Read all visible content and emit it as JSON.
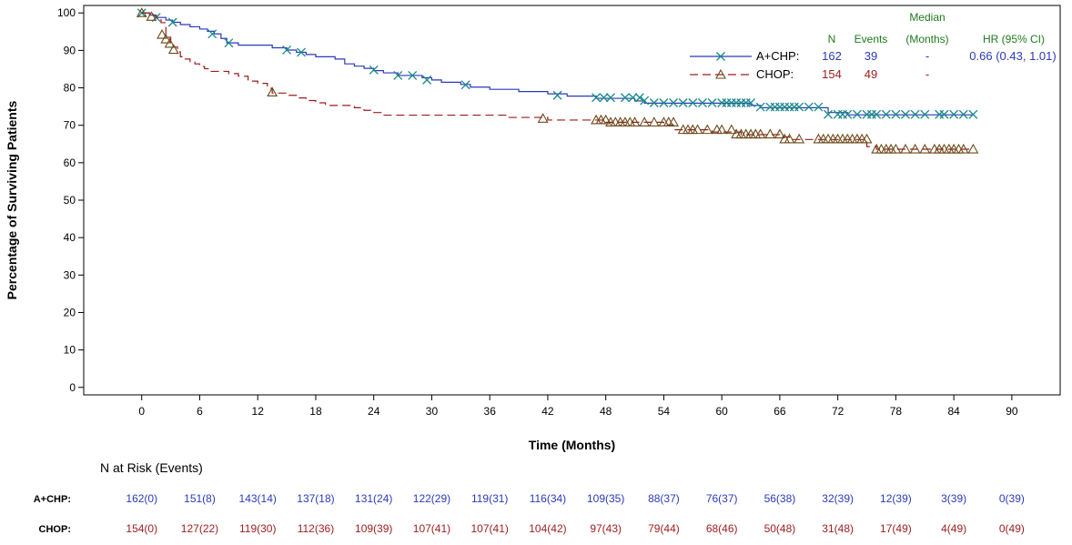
{
  "chart_data": {
    "type": "line",
    "subtype": "kaplan-meier",
    "title": "",
    "xlabel": "Time (Months)",
    "ylabel": "Percentage of Surviving Patients",
    "xlim": [
      -6,
      95
    ],
    "ylim": [
      -2,
      102
    ],
    "xticks": [
      0,
      6,
      12,
      18,
      24,
      30,
      36,
      42,
      48,
      54,
      60,
      66,
      72,
      78,
      84,
      90
    ],
    "yticks": [
      0,
      10,
      20,
      30,
      40,
      50,
      60,
      70,
      80,
      90,
      100
    ],
    "grid": false,
    "legend": {
      "placement": "top-right",
      "header": {
        "median": "Median",
        "n": "N",
        "events": "Events",
        "months": "(Months)",
        "hr": "HR (95% CI)"
      },
      "rows": [
        {
          "arm": "A+CHP:",
          "n": "162",
          "events": "39",
          "median": "-",
          "hr": "0.66 (0.43, 1.01)"
        },
        {
          "arm": "CHOP:",
          "n": "154",
          "events": "49",
          "median": "-",
          "hr": ""
        }
      ]
    },
    "series": [
      {
        "name": "A+CHP",
        "color": "#2b3ab8",
        "marker_color": "#1a8a8a",
        "marker": "x",
        "line_style": "solid",
        "steps": [
          [
            0,
            100
          ],
          [
            0.8,
            99.4
          ],
          [
            1.5,
            98.8
          ],
          [
            2.5,
            98.1
          ],
          [
            3.2,
            97.5
          ],
          [
            4,
            96.9
          ],
          [
            5,
            96.3
          ],
          [
            6,
            95.7
          ],
          [
            6.8,
            95.1
          ],
          [
            7.5,
            94.4
          ],
          [
            8.2,
            93.2
          ],
          [
            8.8,
            92.0
          ],
          [
            10,
            91.4
          ],
          [
            11,
            91.4
          ],
          [
            12.5,
            91.4
          ],
          [
            13.5,
            90.7
          ],
          [
            15,
            90.1
          ],
          [
            16,
            89.5
          ],
          [
            17,
            88.9
          ],
          [
            18,
            88.3
          ],
          [
            20,
            87.7
          ],
          [
            21,
            86.4
          ],
          [
            22,
            85.8
          ],
          [
            23,
            85.2
          ],
          [
            24,
            84.6
          ],
          [
            25,
            84.0
          ],
          [
            26.5,
            83.3
          ],
          [
            28,
            83.3
          ],
          [
            29,
            82.7
          ],
          [
            30,
            82.1
          ],
          [
            31,
            81.5
          ],
          [
            33,
            80.9
          ],
          [
            34,
            80.2
          ],
          [
            36,
            79.6
          ],
          [
            39,
            79.0
          ],
          [
            42,
            78.4
          ],
          [
            44,
            77.8
          ],
          [
            46,
            77.8
          ],
          [
            47,
            77.2
          ],
          [
            50,
            77.2
          ],
          [
            51,
            76.5
          ],
          [
            52,
            75.9
          ],
          [
            54,
            75.9
          ],
          [
            55,
            75.9
          ],
          [
            56,
            75.9
          ],
          [
            60,
            75.9
          ],
          [
            63,
            75.3
          ],
          [
            64,
            74.7
          ],
          [
            67,
            74.7
          ],
          [
            70,
            74.7
          ],
          [
            71,
            73.4
          ],
          [
            73,
            72.8
          ],
          [
            86,
            72.8
          ]
        ],
        "censor": [
          [
            0,
            100
          ],
          [
            1.5,
            98.8
          ],
          [
            3.2,
            97.5
          ],
          [
            7.3,
            94.4
          ],
          [
            9,
            92
          ],
          [
            15,
            90.1
          ],
          [
            16.5,
            89.5
          ],
          [
            24,
            84.8
          ],
          [
            26.5,
            83.3
          ],
          [
            28,
            83.3
          ],
          [
            29.5,
            82.1
          ],
          [
            33.5,
            80.8
          ],
          [
            43,
            78
          ],
          [
            47,
            77.4
          ],
          [
            47.8,
            77.4
          ],
          [
            48.5,
            77.4
          ],
          [
            50,
            77.4
          ],
          [
            50.8,
            77.4
          ],
          [
            51.5,
            77.4
          ],
          [
            52,
            76.6
          ],
          [
            53,
            76
          ],
          [
            54,
            76
          ],
          [
            55,
            76
          ],
          [
            56,
            76
          ],
          [
            57,
            76
          ],
          [
            58,
            76
          ],
          [
            59,
            76
          ],
          [
            60,
            76
          ],
          [
            60.5,
            76
          ],
          [
            61,
            76
          ],
          [
            61.5,
            76
          ],
          [
            62,
            76
          ],
          [
            62.5,
            76
          ],
          [
            63,
            76
          ],
          [
            64,
            74.9
          ],
          [
            65,
            74.9
          ],
          [
            65.5,
            74.9
          ],
          [
            66,
            74.9
          ],
          [
            66.5,
            74.9
          ],
          [
            67,
            74.9
          ],
          [
            67.5,
            74.9
          ],
          [
            68,
            74.9
          ],
          [
            69,
            74.9
          ],
          [
            70,
            74.9
          ],
          [
            71,
            72.9
          ],
          [
            72,
            72.9
          ],
          [
            72.5,
            72.9
          ],
          [
            73,
            72.9
          ],
          [
            74,
            72.9
          ],
          [
            75,
            72.9
          ],
          [
            75.5,
            72.9
          ],
          [
            76,
            72.9
          ],
          [
            77,
            72.9
          ],
          [
            78,
            72.9
          ],
          [
            79,
            72.9
          ],
          [
            80,
            72.9
          ],
          [
            81,
            72.9
          ],
          [
            82.5,
            72.9
          ],
          [
            83,
            72.9
          ],
          [
            84,
            72.9
          ],
          [
            85,
            72.9
          ],
          [
            86,
            72.9
          ]
        ]
      },
      {
        "name": "CHOP",
        "color": "#9c1c1c",
        "marker_color": "#6b4a1a",
        "marker": "triangle",
        "line_style": "dashed",
        "steps": [
          [
            0,
            100
          ],
          [
            0.8,
            99.4
          ],
          [
            1.5,
            98.7
          ],
          [
            2,
            97.4
          ],
          [
            2.5,
            94.2
          ],
          [
            2.8,
            93.5
          ],
          [
            3,
            92.2
          ],
          [
            3.3,
            90.9
          ],
          [
            3.7,
            89.6
          ],
          [
            4,
            88.3
          ],
          [
            4.5,
            87.7
          ],
          [
            5,
            87.0
          ],
          [
            5.5,
            86.4
          ],
          [
            6,
            85.7
          ],
          [
            6.5,
            85.1
          ],
          [
            7,
            84.4
          ],
          [
            8,
            84.4
          ],
          [
            9,
            83.8
          ],
          [
            10,
            83.1
          ],
          [
            11,
            81.8
          ],
          [
            12,
            81.2
          ],
          [
            13,
            79.9
          ],
          [
            13.5,
            78.6
          ],
          [
            14,
            78.6
          ],
          [
            15,
            78.0
          ],
          [
            16,
            77.3
          ],
          [
            17,
            76.6
          ],
          [
            18,
            76.0
          ],
          [
            19,
            75.3
          ],
          [
            21,
            75.3
          ],
          [
            22,
            74.7
          ],
          [
            23,
            74.0
          ],
          [
            24,
            73.4
          ],
          [
            25,
            72.7
          ],
          [
            30,
            72.7
          ],
          [
            36,
            72.7
          ],
          [
            38,
            72.1
          ],
          [
            42,
            71.4
          ],
          [
            46,
            71.4
          ],
          [
            47,
            71.4
          ],
          [
            48,
            70.8
          ],
          [
            51,
            70.8
          ],
          [
            54,
            70.1
          ],
          [
            55,
            68.8
          ],
          [
            58,
            68.8
          ],
          [
            59,
            68.2
          ],
          [
            62,
            67.5
          ],
          [
            66,
            66.9
          ],
          [
            67,
            66.2
          ],
          [
            70,
            66.2
          ],
          [
            72,
            66.2
          ],
          [
            75,
            64.3
          ],
          [
            76,
            63.6
          ],
          [
            86,
            63.6
          ]
        ],
        "censor": [
          [
            0,
            100
          ],
          [
            1,
            99
          ],
          [
            2.1,
            94.2
          ],
          [
            2.5,
            93
          ],
          [
            2.9,
            91.8
          ],
          [
            3.3,
            90.2
          ],
          [
            13.5,
            78.8
          ],
          [
            41.5,
            71.8
          ],
          [
            47,
            71.4
          ],
          [
            47.5,
            71.4
          ],
          [
            48,
            71.4
          ],
          [
            48.5,
            70.8
          ],
          [
            49,
            70.8
          ],
          [
            49.5,
            70.8
          ],
          [
            50,
            70.8
          ],
          [
            50.5,
            70.8
          ],
          [
            51,
            70.8
          ],
          [
            52,
            70.8
          ],
          [
            53,
            70.8
          ],
          [
            54,
            70.8
          ],
          [
            54.5,
            70.8
          ],
          [
            55,
            70.8
          ],
          [
            56,
            68.8
          ],
          [
            56.5,
            68.8
          ],
          [
            57,
            68.8
          ],
          [
            57.5,
            68.8
          ],
          [
            58.5,
            68.8
          ],
          [
            59.5,
            68.8
          ],
          [
            60,
            68.8
          ],
          [
            61,
            68.8
          ],
          [
            61.5,
            67.6
          ],
          [
            62,
            67.6
          ],
          [
            62.5,
            67.6
          ],
          [
            63,
            67.6
          ],
          [
            63.5,
            67.6
          ],
          [
            64,
            67.6
          ],
          [
            65,
            67.6
          ],
          [
            66,
            67.6
          ],
          [
            66.5,
            66.3
          ],
          [
            67,
            66.3
          ],
          [
            68,
            66.3
          ],
          [
            70,
            66.3
          ],
          [
            70.5,
            66.3
          ],
          [
            71,
            66.3
          ],
          [
            71.5,
            66.3
          ],
          [
            72,
            66.3
          ],
          [
            72.5,
            66.3
          ],
          [
            73,
            66.3
          ],
          [
            73.5,
            66.3
          ],
          [
            74,
            66.3
          ],
          [
            74.5,
            66.3
          ],
          [
            75,
            66.3
          ],
          [
            76,
            63.6
          ],
          [
            76.5,
            63.6
          ],
          [
            77,
            63.6
          ],
          [
            77.5,
            63.6
          ],
          [
            78,
            63.6
          ],
          [
            79,
            63.6
          ],
          [
            80,
            63.6
          ],
          [
            81,
            63.6
          ],
          [
            82,
            63.6
          ],
          [
            82.5,
            63.6
          ],
          [
            83,
            63.6
          ],
          [
            83.5,
            63.6
          ],
          [
            84,
            63.6
          ],
          [
            84.5,
            63.6
          ],
          [
            85,
            63.6
          ],
          [
            86,
            63.6
          ]
        ]
      }
    ],
    "at_risk": {
      "title": "N at Risk (Events)",
      "rows": [
        {
          "label": "A+CHP:",
          "color": "#2b3ab8",
          "values": [
            "162(0)",
            "151(8)",
            "143(14)",
            "137(18)",
            "131(24)",
            "122(29)",
            "119(31)",
            "116(34)",
            "109(35)",
            "88(37)",
            "76(37)",
            "56(38)",
            "32(39)",
            "12(39)",
            "3(39)",
            "0(39)"
          ]
        },
        {
          "label": "CHOP:",
          "color": "#9c1c1c",
          "values": [
            "154(0)",
            "127(22)",
            "119(30)",
            "112(36)",
            "109(39)",
            "107(41)",
            "107(41)",
            "104(42)",
            "97(43)",
            "79(44)",
            "68(46)",
            "50(48)",
            "31(48)",
            "17(49)",
            "4(49)",
            "0(49)"
          ]
        }
      ]
    }
  }
}
